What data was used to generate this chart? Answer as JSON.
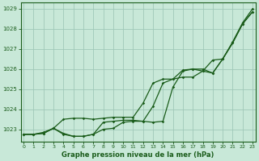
{
  "xlabel": "Graphe pression niveau de la mer (hPa)",
  "background_color": "#c8e8d8",
  "grid_color": "#a0c8b8",
  "line_color": "#1a5c1a",
  "ylim": [
    1022.4,
    1029.3
  ],
  "xlim": [
    -0.3,
    23.3
  ],
  "yticks": [
    1023,
    1024,
    1025,
    1026,
    1027,
    1028,
    1029
  ],
  "xticks": [
    0,
    1,
    2,
    3,
    4,
    5,
    6,
    7,
    8,
    9,
    10,
    11,
    12,
    13,
    14,
    15,
    16,
    17,
    18,
    19,
    20,
    21,
    22,
    23
  ],
  "series": [
    [
      1022.75,
      1022.75,
      1022.8,
      1023.05,
      1023.5,
      1023.55,
      1023.55,
      1023.5,
      1023.55,
      1023.6,
      1023.6,
      1023.6,
      1024.3,
      1025.3,
      1025.5,
      1025.5,
      1025.95,
      1026.0,
      1026.0,
      1025.8,
      1026.5,
      1027.3,
      1028.25,
      1028.85
    ],
    [
      1022.75,
      1022.75,
      1022.85,
      1023.05,
      1022.75,
      1022.65,
      1022.65,
      1022.75,
      1023.35,
      1023.4,
      1023.45,
      1023.45,
      1023.4,
      1023.35,
      1023.4,
      1025.1,
      1025.9,
      1026.0,
      1025.9,
      1025.8,
      1026.5,
      1027.3,
      1028.25,
      1028.85
    ],
    [
      1022.75,
      1022.75,
      1022.8,
      1023.05,
      1022.8,
      1022.65,
      1022.65,
      1022.75,
      1023.0,
      1023.05,
      1023.35,
      1023.4,
      1023.4,
      1024.15,
      1025.3,
      1025.5,
      1025.6,
      1025.6,
      1025.9,
      1026.45,
      1026.5,
      1027.35,
      1028.3,
      1029.0
    ]
  ]
}
